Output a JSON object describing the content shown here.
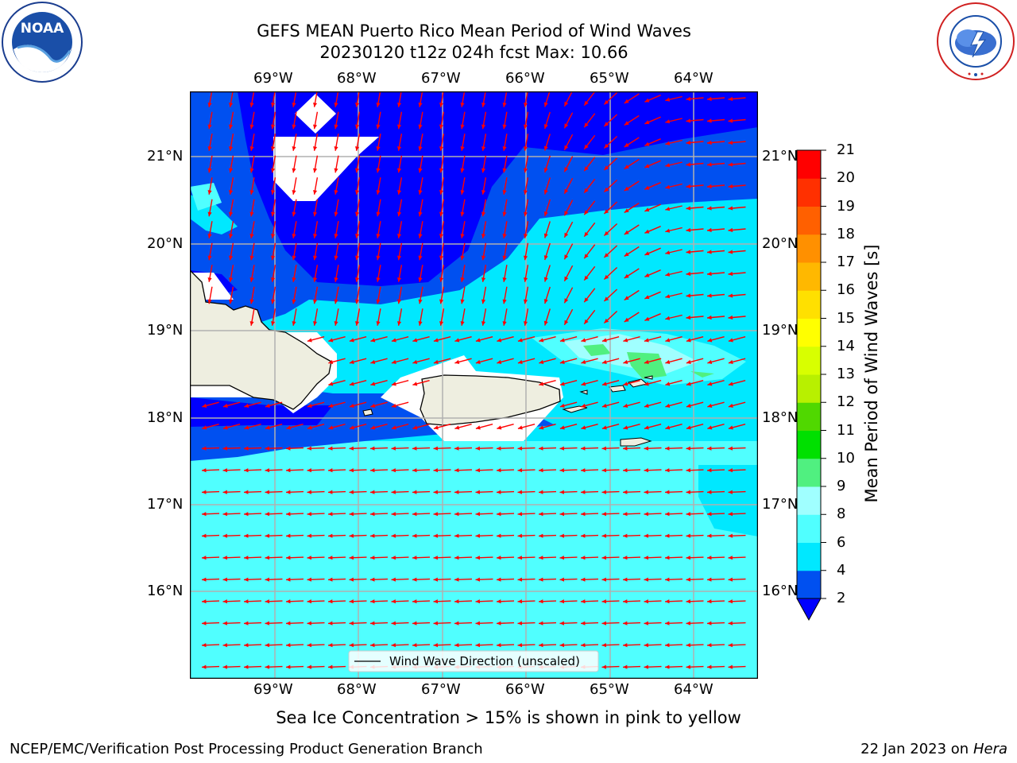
{
  "header": {
    "title_line1": "GEFS MEAN Puerto Rico Mean Period of Wind Waves",
    "title_line2": "20230120 t12z 024h fcst   Max: 10.66"
  },
  "logos": {
    "left_text": "NOAA",
    "left_ring_text": "NATIONAL OCEANIC AND ATMOSPHERIC ADMINISTRATION",
    "left_ring_bottom": "U.S. DEPARTMENT OF COMMERCE",
    "right_ring_text": "NATIONAL WEATHER SERVICE",
    "left_icon": "noaa-logo",
    "right_icon": "nws-logo"
  },
  "map": {
    "lon_labels": [
      "69°W",
      "68°W",
      "67°W",
      "66°W",
      "65°W",
      "64°W"
    ],
    "lat_labels": [
      "21°N",
      "20°N",
      "19°N",
      "18°N",
      "17°N",
      "16°N"
    ],
    "legend_label": "Wind Wave Direction (unscaled)",
    "arrow_color": "#ff0000",
    "land_color": "#eeeee0",
    "grid_color": "#b0b0b0"
  },
  "colorbar": {
    "label": "Mean Period of Wind Waves [s]",
    "ticks": [
      "2",
      "4",
      "6",
      "8",
      "9",
      "10",
      "11",
      "12",
      "13",
      "14",
      "15",
      "16",
      "17",
      "18",
      "19",
      "20",
      "21"
    ],
    "colors": [
      "#0050f0",
      "#00e8ff",
      "#50ffff",
      "#a0ffff",
      "#50f080",
      "#00e000",
      "#50d800",
      "#b8f000",
      "#d8ff00",
      "#ffff00",
      "#ffe000",
      "#ffb800",
      "#ff9000",
      "#ff6000",
      "#ff3000",
      "#ff0000"
    ],
    "under_color": "#0000ff"
  },
  "footer": {
    "sea_ice_note": "Sea Ice Concentration > 15% is shown in pink to yellow",
    "branch": "NCEP/EMC/Verification Post Processing Product Generation Branch",
    "date_prefix": "22 Jan 2023 on ",
    "machine": "Hera"
  }
}
